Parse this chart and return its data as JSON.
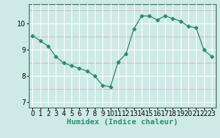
{
  "x": [
    0,
    1,
    2,
    3,
    4,
    5,
    6,
    7,
    8,
    9,
    10,
    11,
    12,
    13,
    14,
    15,
    16,
    17,
    18,
    19,
    20,
    21,
    22,
    23
  ],
  "y": [
    9.55,
    9.35,
    9.15,
    8.75,
    8.5,
    8.4,
    8.3,
    8.2,
    8.0,
    7.65,
    7.6,
    8.55,
    8.85,
    9.8,
    10.3,
    10.3,
    10.15,
    10.3,
    10.2,
    10.1,
    9.9,
    9.85,
    9.0,
    8.75
  ],
  "line_color": "#2E8B70",
  "marker": "D",
  "marker_size": 2.5,
  "bg_color": "#ceeae7",
  "grid_major_color": "#ffffff",
  "grid_minor_color": "#e8c8c8",
  "xlabel": "Humidex (Indice chaleur)",
  "xlabel_fontsize": 8,
  "yticks": [
    7,
    8,
    9,
    10
  ],
  "xtick_labels": [
    "0",
    "1",
    "2",
    "3",
    "4",
    "5",
    "6",
    "7",
    "8",
    "9",
    "10",
    "11",
    "12",
    "13",
    "14",
    "15",
    "16",
    "17",
    "18",
    "19",
    "20",
    "21",
    "22",
    "23"
  ],
  "ylim": [
    6.8,
    10.75
  ],
  "xlim": [
    -0.5,
    23.5
  ],
  "tick_fontsize": 7,
  "line_width": 1.0,
  "spine_color": "#336655"
}
